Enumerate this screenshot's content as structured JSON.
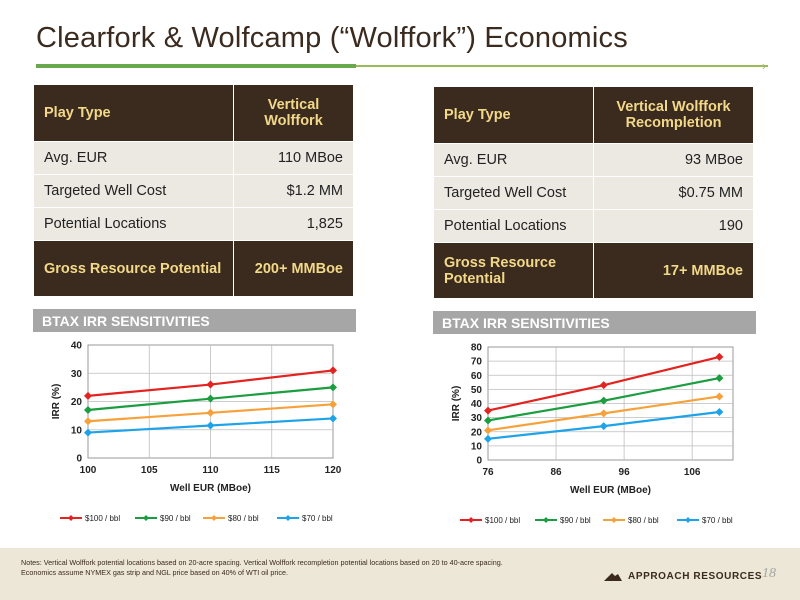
{
  "title": "Clearfork & Wolfcamp (“Wolffork”) Economics",
  "left_table": {
    "header": [
      "Play Type",
      "Vertical Wolffork"
    ],
    "rows": [
      [
        "Avg. EUR",
        "110 MBoe"
      ],
      [
        "Targeted Well Cost",
        "$1.2 MM"
      ],
      [
        "Potential Locations",
        "1,825"
      ]
    ],
    "gross": [
      "Gross Resource Potential",
      "200+ MMBoe"
    ]
  },
  "right_table": {
    "header": [
      "Play Type",
      "Vertical Wolffork Recompletion"
    ],
    "rows": [
      [
        "Avg. EUR",
        "93 MBoe"
      ],
      [
        "Targeted Well Cost",
        "$0.75 MM"
      ],
      [
        "Potential Locations",
        "190"
      ]
    ],
    "gross": [
      "Gross Resource Potential",
      "17+ MMBoe"
    ]
  },
  "btax_label": "BTAX IRR SENSITIVITIES",
  "chart_data": [
    {
      "type": "line",
      "xlabel": "Well EUR (MBoe)",
      "ylabel": "IRR (%)",
      "x": [
        100,
        110,
        120
      ],
      "xticks": [
        100,
        105,
        110,
        115,
        120
      ],
      "xlim": [
        100,
        120
      ],
      "ylim": [
        0,
        40
      ],
      "yticks": [
        0,
        10,
        20,
        30,
        40
      ],
      "grid": true,
      "legend": "bottom",
      "series": [
        {
          "name": "$100 / bbl",
          "color": "#e3231f",
          "values": [
            22,
            26,
            31
          ]
        },
        {
          "name": "$90 / bbl",
          "color": "#1a9e3f",
          "values": [
            17,
            21,
            25
          ]
        },
        {
          "name": "$80 / bbl",
          "color": "#f7a13a",
          "values": [
            13,
            16,
            19
          ]
        },
        {
          "name": "$70 / bbl",
          "color": "#1fa3e8",
          "values": [
            9,
            11.5,
            14
          ]
        }
      ]
    },
    {
      "type": "line",
      "xlabel": "Well EUR (MBoe)",
      "ylabel": "IRR (%)",
      "x": [
        76,
        93,
        110
      ],
      "xticks": [
        76,
        86,
        96,
        106
      ],
      "xlim": [
        76,
        112
      ],
      "ylim": [
        0,
        80
      ],
      "yticks": [
        0,
        10,
        20,
        30,
        40,
        50,
        60,
        70,
        80
      ],
      "grid": true,
      "legend": "bottom",
      "series": [
        {
          "name": "$100 / bbl",
          "color": "#e3231f",
          "values": [
            35,
            53,
            73
          ]
        },
        {
          "name": "$90 / bbl",
          "color": "#1a9e3f",
          "values": [
            28,
            42,
            58
          ]
        },
        {
          "name": "$80 / bbl",
          "color": "#f7a13a",
          "values": [
            21,
            33,
            45
          ]
        },
        {
          "name": "$70 / bbl",
          "color": "#1fa3e8",
          "values": [
            15,
            24,
            34
          ]
        }
      ]
    }
  ],
  "notes": [
    "Notes: Vertical Wolffork potential locations based on 20-acre spacing.  Vertical Wolffork recompletion potential locations based on 20 to 40-acre spacing.",
    "Economics assume NYMEX gas strip and NGL price based on 40% of WTI oil price."
  ],
  "logo_text": "APPROACH RESOURCES",
  "page_number": "18",
  "colors": {
    "dark_brown": "#3b2a1e",
    "gold": "#f2d98a",
    "accent_green": "#9bbb59",
    "row_bg": "#ece9e3",
    "footer_bg": "#ede7d7",
    "sensitivity_bar": "#a6a6a6"
  }
}
